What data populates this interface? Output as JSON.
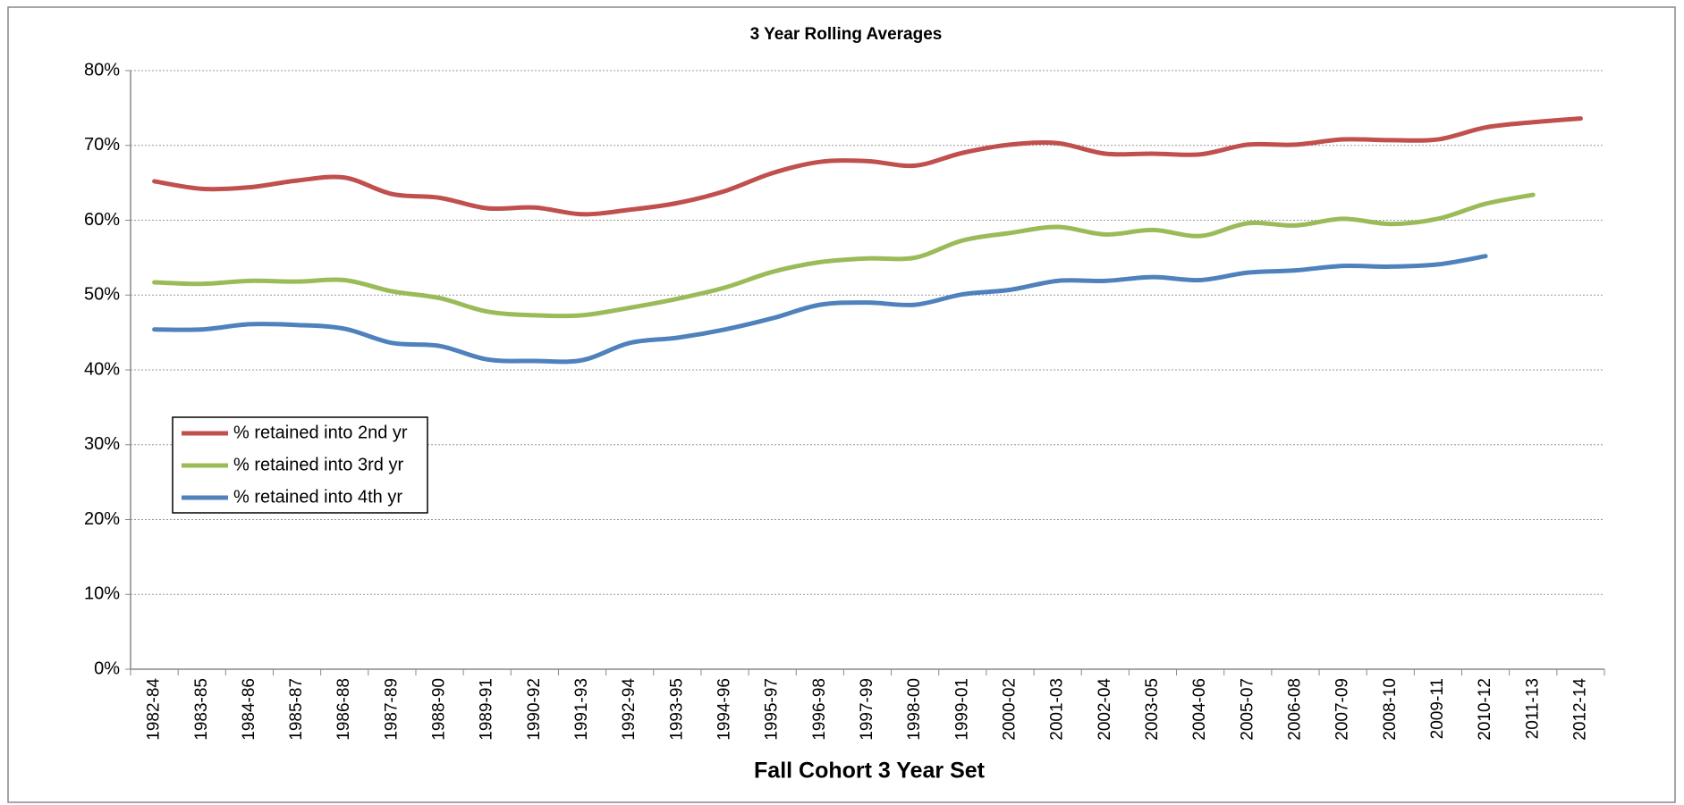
{
  "chart_data": {
    "type": "line",
    "title": "3 Year Rolling Averages",
    "x_label": "Fall Cohort  3 Year Set",
    "categories": [
      "1982-84",
      "1983-85",
      "1984-86",
      "1985-87",
      "1986-88",
      "1987-89",
      "1988-90",
      "1989-91",
      "1990-92",
      "1991-93",
      "1992-94",
      "1993-95",
      "1994-96",
      "1995-97",
      "1996-98",
      "1997-99",
      "1998-00",
      "1999-01",
      "2000-02",
      "2001-03",
      "2002-04",
      "2003-05",
      "2004-06",
      "2005-07",
      "2006-08",
      "2007-09",
      "2008-10",
      "2009-11",
      "2010-12",
      "2011-13",
      "2012-14"
    ],
    "series": [
      {
        "name": "% retained into 2nd yr",
        "color": "#c0504d",
        "values": [
          65.2,
          64.2,
          64.4,
          65.3,
          65.7,
          63.5,
          63.0,
          61.6,
          61.7,
          60.8,
          61.4,
          62.3,
          63.9,
          66.3,
          67.8,
          67.9,
          67.3,
          69.0,
          70.1,
          70.3,
          68.9,
          68.9,
          68.8,
          70.1,
          70.1,
          70.8,
          70.7,
          70.8,
          72.4,
          73.1,
          73.6
        ]
      },
      {
        "name": "% retained into 3rd yr",
        "color": "#9bbb59",
        "values": [
          51.7,
          51.5,
          51.9,
          51.8,
          52.0,
          50.5,
          49.6,
          47.8,
          47.3,
          47.3,
          48.3,
          49.5,
          51.0,
          53.1,
          54.4,
          54.9,
          55.0,
          57.3,
          58.3,
          59.1,
          58.1,
          58.7,
          57.9,
          59.6,
          59.3,
          60.2,
          59.5,
          60.2,
          62.2,
          63.4,
          null
        ]
      },
      {
        "name": "% retained into 4th yr",
        "color": "#4f81bd",
        "values": [
          45.4,
          45.4,
          46.1,
          46.0,
          45.5,
          43.6,
          43.2,
          41.4,
          41.2,
          41.3,
          43.6,
          44.3,
          45.4,
          46.9,
          48.7,
          49.0,
          48.7,
          50.1,
          50.7,
          51.9,
          51.9,
          52.4,
          52.0,
          53.0,
          53.3,
          53.9,
          53.8,
          54.1,
          55.2,
          null,
          null
        ]
      }
    ],
    "ylim": [
      0,
      80
    ],
    "yticks": [
      {
        "value": 0,
        "label": "0%"
      },
      {
        "value": 10,
        "label": "10%"
      },
      {
        "value": 20,
        "label": "20%"
      },
      {
        "value": 30,
        "label": "30%"
      },
      {
        "value": 40,
        "label": "40%"
      },
      {
        "value": 50,
        "label": "50%"
      },
      {
        "value": 60,
        "label": "60%"
      },
      {
        "value": 70,
        "label": "70%"
      },
      {
        "value": 80,
        "label": "80%"
      }
    ],
    "grid": true,
    "legend": "left",
    "smooth": true
  }
}
